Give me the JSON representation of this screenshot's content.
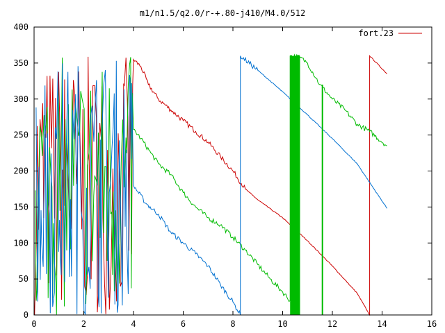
{
  "chart_data": {
    "type": "line",
    "title": "m1/n1.5/q2.0/r-+.80-j410/M4.0/512",
    "xlabel": "",
    "ylabel": "",
    "xlim": [
      0,
      16
    ],
    "ylim": [
      0,
      400
    ],
    "x_ticks": [
      0,
      2,
      4,
      6,
      8,
      10,
      12,
      14,
      16
    ],
    "y_ticks": [
      0,
      50,
      100,
      150,
      200,
      250,
      300,
      350,
      400
    ],
    "x_tick_labels": [
      "0",
      "2",
      "4",
      "6",
      "8",
      "10",
      "12",
      "14",
      "16"
    ],
    "y_tick_labels": [
      "0",
      "50",
      "100",
      "150",
      "200",
      "250",
      "300",
      "350",
      "400"
    ],
    "grid": false,
    "legend_position": "top-right",
    "legend": [
      {
        "label": "fort.23",
        "color": "#cc0000"
      }
    ],
    "series": [
      {
        "name": "fort.23",
        "color": "#cc0000",
        "chaotic_until": 4.0,
        "points": [
          [
            4.0,
            355
          ],
          [
            4.3,
            345
          ],
          [
            4.6,
            320
          ],
          [
            5.0,
            300
          ],
          [
            5.5,
            285
          ],
          [
            6.0,
            270
          ],
          [
            6.5,
            255
          ],
          [
            7.0,
            240
          ],
          [
            7.5,
            220
          ],
          [
            8.0,
            200
          ],
          [
            8.5,
            175
          ],
          [
            9.0,
            160
          ],
          [
            10.0,
            135
          ],
          [
            11.0,
            103
          ],
          [
            12.0,
            68
          ],
          [
            13.0,
            30
          ],
          [
            13.5,
            0
          ],
          [
            13.5,
            360
          ],
          [
            14.2,
            335
          ]
        ]
      },
      {
        "color": "#00bb00",
        "chaotic_until": 4.0,
        "points": [
          [
            4.0,
            258
          ],
          [
            4.3,
            245
          ],
          [
            4.7,
            225
          ],
          [
            5.0,
            210
          ],
          [
            5.5,
            195
          ],
          [
            6.0,
            170
          ],
          [
            6.5,
            150
          ],
          [
            7.0,
            135
          ],
          [
            7.5,
            125
          ],
          [
            8.0,
            108
          ],
          [
            8.5,
            90
          ],
          [
            9.0,
            70
          ],
          [
            9.5,
            50
          ],
          [
            10.0,
            32
          ],
          [
            10.3,
            20
          ],
          [
            10.3,
            360
          ],
          [
            10.7,
            358
          ],
          [
            11.0,
            350
          ],
          [
            11.5,
            320
          ],
          [
            12.0,
            300
          ],
          [
            12.5,
            285
          ],
          [
            13.0,
            265
          ],
          [
            13.5,
            255
          ],
          [
            14.2,
            235
          ]
        ]
      },
      {
        "color": "#0070d0",
        "chaotic_until": 4.0,
        "points": [
          [
            4.0,
            180
          ],
          [
            4.5,
            155
          ],
          [
            5.0,
            140
          ],
          [
            5.5,
            115
          ],
          [
            6.0,
            100
          ],
          [
            6.5,
            85
          ],
          [
            7.0,
            68
          ],
          [
            7.5,
            42
          ],
          [
            8.0,
            18
          ],
          [
            8.3,
            0
          ],
          [
            8.3,
            360
          ],
          [
            9.0,
            340
          ],
          [
            10.0,
            310
          ],
          [
            11.0,
            278
          ],
          [
            12.0,
            245
          ],
          [
            13.0,
            210
          ],
          [
            14.2,
            148
          ]
        ]
      }
    ]
  }
}
